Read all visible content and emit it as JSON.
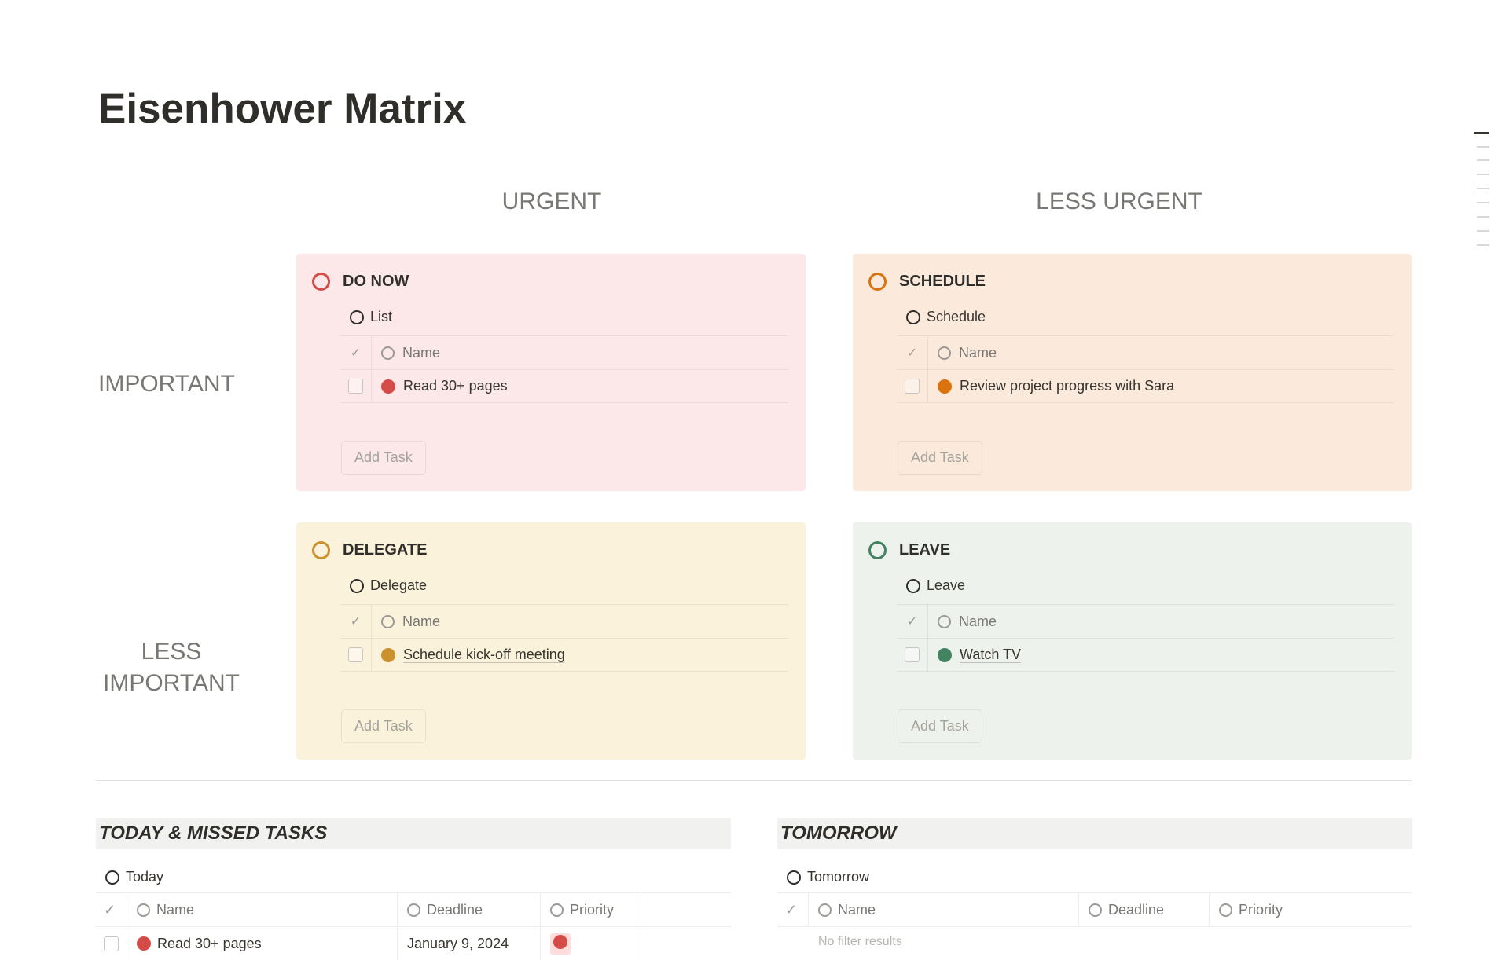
{
  "title": "Eisenhower Matrix",
  "columns": [
    "URGENT",
    "LESS URGENT"
  ],
  "rows": [
    "IMPORTANT",
    "LESS IMPORTANT"
  ],
  "quadrants": [
    {
      "title": "DO NOW",
      "view": "List",
      "header": "Name",
      "task": "Read 30+ pages",
      "add": "Add Task",
      "ring": "#d44c47",
      "bg": "#fce8e8",
      "dot": "#d44c47"
    },
    {
      "title": "SCHEDULE",
      "view": "Schedule",
      "header": "Name",
      "task": "Review project progress with Sara",
      "add": "Add Task",
      "ring": "#d9730d",
      "bg": "#fbeadc",
      "dot": "#d9730d"
    },
    {
      "title": "DELEGATE",
      "view": "Delegate",
      "header": "Name",
      "task": "Schedule kick-off meeting",
      "add": "Add Task",
      "ring": "#cb912f",
      "bg": "#fbf2dc",
      "dot": "#cb912f"
    },
    {
      "title": "LEAVE",
      "view": "Leave",
      "header": "Name",
      "task": "Watch TV",
      "add": "Add Task",
      "ring": "#448361",
      "bg": "#edf2ec",
      "dot": "#448361"
    }
  ],
  "today": {
    "title": "TODAY & MISSED TASKS",
    "view": "Today",
    "headers": [
      "Name",
      "Deadline",
      "Priority"
    ],
    "rows": [
      {
        "name": "Read 30+ pages",
        "deadline": "January 9, 2024"
      }
    ]
  },
  "tomorrow": {
    "title": "TOMORROW",
    "view": "Tomorrow",
    "headers": [
      "Name",
      "Deadline",
      "Priority"
    ],
    "empty": "No filter results"
  }
}
